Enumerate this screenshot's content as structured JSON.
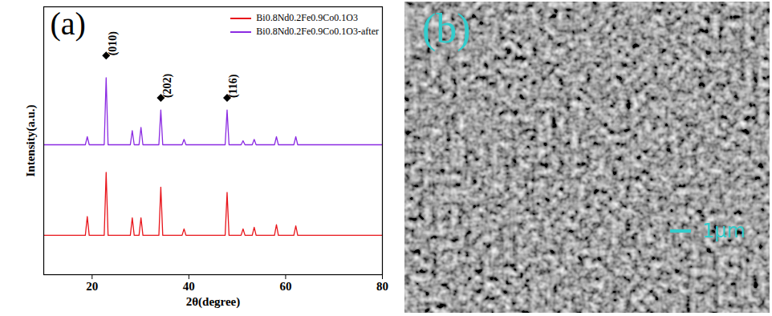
{
  "chart_data": {
    "type": "line",
    "panel_label": "(a)",
    "xlabel": "2θ(degree)",
    "ylabel": "Intensity(a.u.)",
    "xlim": [
      10,
      80
    ],
    "xticks": [
      20,
      40,
      60,
      80
    ],
    "ylim": [
      0,
      100
    ],
    "yticks": [],
    "tick_labels": "x",
    "grid": false,
    "legend": "top-right",
    "x": [
      10,
      18.6,
      19.0,
      19.4,
      22.5,
      22.9,
      23.3,
      27.9,
      28.3,
      28.7,
      29.7,
      30.1,
      30.5,
      33.8,
      34.2,
      34.6,
      38.6,
      39.0,
      39.4,
      47.5,
      47.9,
      48.3,
      50.8,
      51.2,
      51.6,
      53.1,
      53.5,
      53.9,
      57.7,
      58.1,
      58.5,
      61.7,
      62.1,
      62.5,
      80
    ],
    "series": [
      {
        "name": "Bi0.8Nd0.2Fe0.9Co0.1O3",
        "color": "#e8151b",
        "values": [
          14.7,
          14.7,
          21.7,
          14.7,
          14.7,
          38.2,
          14.7,
          14.7,
          21.2,
          14.7,
          14.7,
          21.2,
          14.7,
          14.7,
          32.7,
          14.7,
          14.7,
          17.1,
          14.7,
          14.7,
          30.7,
          14.7,
          14.7,
          17.1,
          14.7,
          14.7,
          17.7,
          14.7,
          14.7,
          18.7,
          14.7,
          14.7,
          18.2,
          14.7,
          14.7
        ]
      },
      {
        "name": "Bi0.8Nd0.2Fe0.9Co0.1O3-after",
        "color": "#8b2be2",
        "values": [
          48.5,
          48.5,
          51.5,
          48.5,
          48.5,
          73.5,
          48.5,
          48.5,
          53.8,
          48.5,
          48.5,
          55.0,
          48.5,
          48.5,
          61.5,
          48.5,
          48.5,
          50.5,
          48.5,
          48.5,
          61.5,
          48.5,
          48.5,
          50.0,
          48.5,
          48.5,
          50.5,
          48.5,
          48.5,
          51.5,
          48.5,
          48.5,
          51.5,
          48.5,
          48.5
        ]
      }
    ],
    "annotations": [
      {
        "text": "(010)",
        "x": 22.9,
        "y": 81.8,
        "marker": "diamond"
      },
      {
        "text": "(202)",
        "x": 34.2,
        "y": 66,
        "marker": "diamond"
      },
      {
        "text": "(116)",
        "x": 47.9,
        "y": 66,
        "marker": "diamond"
      }
    ]
  },
  "image": {
    "panel_label": "(b)",
    "scale_bar": "1μm",
    "color": "#33cccc"
  }
}
